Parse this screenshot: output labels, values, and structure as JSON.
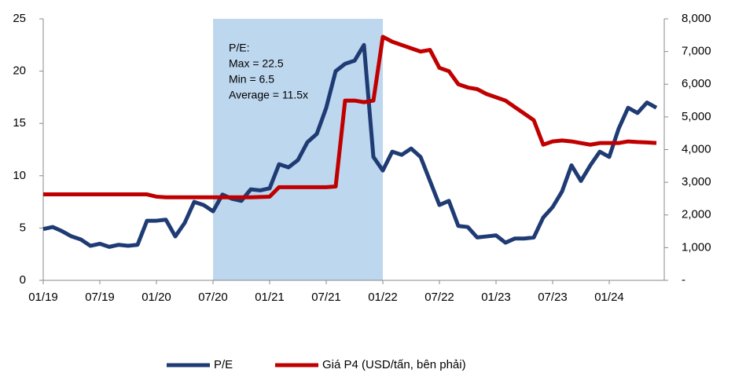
{
  "chart_data": {
    "type": "line",
    "categories": [
      "01/19",
      null,
      null,
      null,
      null,
      null,
      "07/19",
      null,
      null,
      null,
      null,
      null,
      "01/20",
      null,
      null,
      null,
      null,
      null,
      "07/20",
      null,
      null,
      null,
      null,
      null,
      "01/21",
      null,
      null,
      null,
      null,
      null,
      "07/21",
      null,
      null,
      null,
      null,
      null,
      "01/22",
      null,
      null,
      null,
      null,
      null,
      "07/22",
      null,
      null,
      null,
      null,
      null,
      "01/23",
      null,
      null,
      null,
      null,
      null,
      "07/23",
      null,
      null,
      null,
      null,
      null,
      "01/24",
      null,
      null,
      null,
      null,
      null
    ],
    "series": [
      {
        "name": "P/E",
        "color": "#1f3b73",
        "axis": "y",
        "values": [
          4.9,
          5.1,
          4.7,
          4.2,
          3.9,
          3.3,
          3.5,
          3.2,
          3.4,
          3.3,
          3.4,
          5.7,
          5.7,
          5.8,
          4.2,
          5.5,
          7.5,
          7.2,
          6.6,
          8.2,
          7.8,
          7.6,
          8.7,
          8.6,
          8.8,
          11.1,
          10.8,
          11.5,
          13.2,
          14.0,
          16.5,
          20.0,
          20.7,
          21.0,
          22.5,
          11.8,
          10.5,
          12.3,
          12.0,
          12.6,
          11.8,
          9.5,
          7.2,
          7.6,
          5.2,
          5.1,
          4.1,
          4.2,
          4.3,
          3.6,
          4.0,
          4.0,
          4.1,
          6.0,
          7.0,
          8.5,
          11.0,
          9.5,
          11.0,
          12.3,
          11.8,
          14.5,
          16.5,
          16.0,
          17.0,
          16.5
        ]
      },
      {
        "name": "Giá P4 (USD/tấn, bên phải)",
        "color": "#c00000",
        "axis": "y2",
        "values": [
          2630,
          2630,
          2630,
          2630,
          2630,
          2630,
          2630,
          2630,
          2630,
          2630,
          2630,
          2630,
          2560,
          2540,
          2540,
          2540,
          2540,
          2540,
          2540,
          2540,
          2540,
          2540,
          2540,
          2550,
          2560,
          2850,
          2850,
          2850,
          2850,
          2850,
          2850,
          2870,
          5500,
          5500,
          5450,
          5500,
          7450,
          7300,
          7200,
          7100,
          7000,
          7050,
          6500,
          6400,
          6000,
          5900,
          5850,
          5700,
          5600,
          5500,
          5300,
          5100,
          4900,
          4150,
          4250,
          4280,
          4250,
          4200,
          4150,
          4200,
          4200,
          4200,
          4250,
          4230,
          4220,
          4200
        ]
      }
    ],
    "ylim": [
      0,
      25
    ],
    "yticks": [
      0,
      5,
      10,
      15,
      20,
      25
    ],
    "y2lim": [
      0,
      8000
    ],
    "y2ticks": [
      {
        "value": 0,
        "label": "-"
      },
      {
        "value": 1000,
        "label": "1,000"
      },
      {
        "value": 2000,
        "label": "2,000"
      },
      {
        "value": 3000,
        "label": "3,000"
      },
      {
        "value": 4000,
        "label": "4,000"
      },
      {
        "value": 5000,
        "label": "5,000"
      },
      {
        "value": 6000,
        "label": "6,000"
      },
      {
        "value": 7000,
        "label": "7,000"
      },
      {
        "value": 8000,
        "label": "8,000"
      }
    ],
    "shade": [
      "07/20",
      "01/22"
    ],
    "shade_color": "#bdd7ee",
    "annotation": [
      "P/E:",
      "Max = 22.5",
      "Min = 6.5",
      "Average = 11.5x"
    ]
  }
}
